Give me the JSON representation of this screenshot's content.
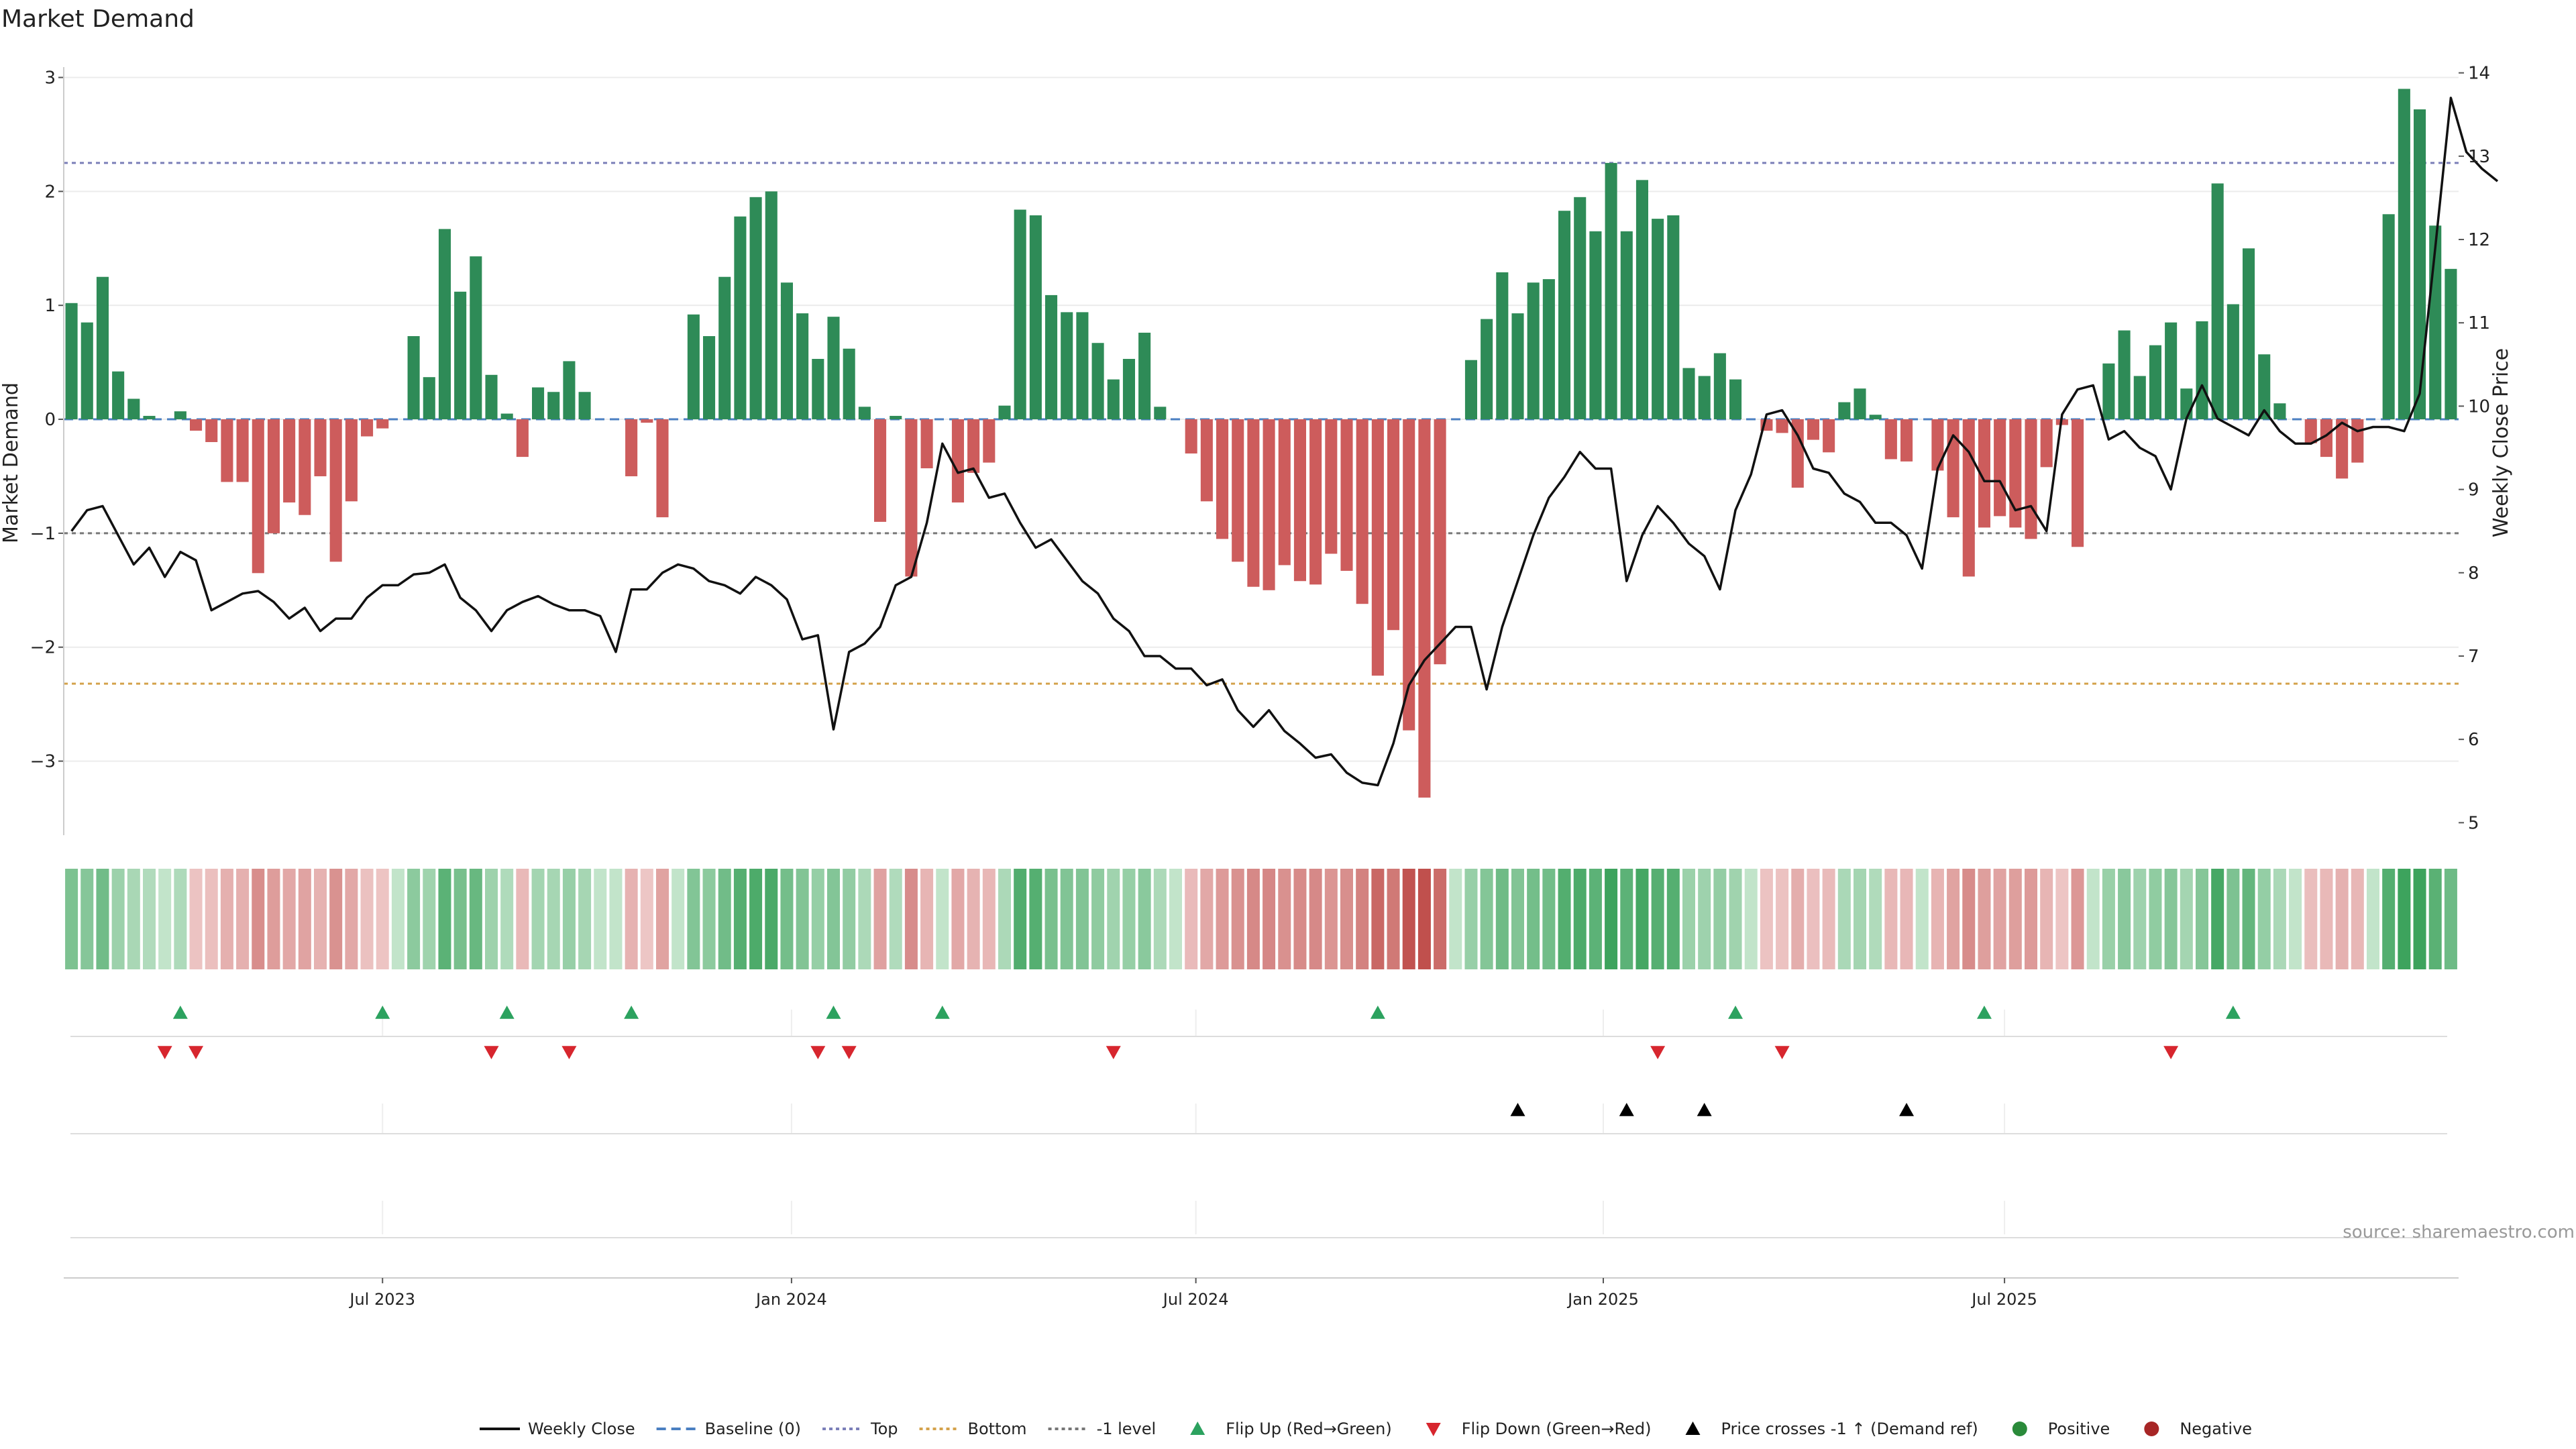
{
  "chart_data": {
    "type": "bar",
    "title": "Market Demand",
    "ylabel_left": "Market Demand",
    "ylabel_right": "Weekly Close Price",
    "source": "source: sharemaestro.com",
    "ylim_left": [
      -3.65,
      3.15
    ],
    "ylim_right": [
      4.85,
      14.15
    ],
    "yticks_left": [
      3,
      2,
      1,
      0,
      -1,
      -2,
      -3
    ],
    "yticks_left_labels": [
      "3",
      "2",
      "1",
      "0",
      "−1",
      "−2",
      "−3"
    ],
    "yticks_right": [
      14,
      13,
      12,
      11,
      10,
      9,
      8,
      7,
      6,
      5
    ],
    "yticks_right_labels": [
      "14",
      "13",
      "12",
      "11",
      "10",
      "9",
      "8",
      "7",
      "6",
      "5"
    ],
    "x_ticks": [
      {
        "label": "Jul 2023",
        "index": 20
      },
      {
        "label": "Jan 2024",
        "index": 46.3
      },
      {
        "label": "Jul 2024",
        "index": 72.3
      },
      {
        "label": "Jan 2025",
        "index": 98.5
      },
      {
        "label": "Jul 2025",
        "index": 124.3
      }
    ],
    "levels": {
      "top": 2.25,
      "bottom": -2.32,
      "minus_one": -1,
      "baseline": 0
    },
    "demand": [
      1.02,
      0.85,
      1.25,
      0.42,
      0.18,
      0.03,
      0,
      0.07,
      -0.1,
      -0.2,
      -0.55,
      -0.55,
      -1.35,
      -1.0,
      -0.73,
      -0.84,
      -0.5,
      -1.25,
      -0.72,
      -0.15,
      -0.08,
      0,
      0.73,
      0.37,
      1.67,
      1.12,
      1.43,
      0.39,
      0.05,
      -0.33,
      0.28,
      0.24,
      0.51,
      0.24,
      0,
      0,
      -0.5,
      -0.03,
      -0.86,
      0,
      0.92,
      0.73,
      1.25,
      1.78,
      1.95,
      2.0,
      1.2,
      0.93,
      0.53,
      0.9,
      0.62,
      0.11,
      -0.9,
      0.03,
      -1.38,
      -0.43,
      0,
      -0.73,
      -0.47,
      -0.38,
      0.12,
      1.84,
      1.79,
      1.09,
      0.94,
      0.94,
      0.67,
      0.35,
      0.53,
      0.76,
      0.11,
      0,
      -0.3,
      -0.72,
      -1.05,
      -1.25,
      -1.47,
      -1.5,
      -1.28,
      -1.42,
      -1.45,
      -1.18,
      -1.33,
      -1.62,
      -2.25,
      -1.85,
      -2.73,
      -3.32,
      -2.15,
      0,
      0.52,
      0.88,
      1.29,
      0.93,
      1.2,
      1.23,
      1.83,
      1.95,
      1.65,
      2.25,
      1.65,
      2.1,
      1.76,
      1.79,
      0.45,
      0.38,
      0.58,
      0.35,
      0,
      -0.1,
      -0.12,
      -0.6,
      -0.18,
      -0.29,
      0.15,
      0.27,
      0.04,
      -0.35,
      -0.37,
      0,
      -0.45,
      -0.86,
      -1.38,
      -0.95,
      -0.85,
      -0.95,
      -1.05,
      -0.42,
      -0.05,
      -1.12,
      0,
      0.49,
      0.78,
      0.38,
      0.65,
      0.85,
      0.27,
      0.86,
      2.07,
      1.01,
      1.5,
      0.57,
      0.14,
      0,
      -0.21,
      -0.33,
      -0.52,
      -0.38,
      0,
      1.8,
      2.9,
      2.72,
      1.7,
      1.32
    ],
    "weekly_close": [
      8.5,
      8.75,
      8.8,
      8.45,
      8.1,
      8.3,
      7.95,
      8.25,
      8.15,
      7.55,
      7.65,
      7.75,
      7.78,
      7.65,
      7.45,
      7.58,
      7.3,
      7.45,
      7.45,
      7.7,
      7.85,
      7.85,
      7.98,
      8.0,
      8.1,
      7.7,
      7.55,
      7.3,
      7.55,
      7.65,
      7.72,
      7.62,
      7.55,
      7.55,
      7.48,
      7.05,
      7.8,
      7.8,
      8.0,
      8.1,
      8.05,
      7.9,
      7.85,
      7.75,
      7.95,
      7.85,
      7.68,
      7.2,
      7.25,
      6.12,
      7.05,
      7.15,
      7.35,
      7.85,
      7.95,
      8.6,
      9.55,
      9.2,
      9.25,
      8.9,
      8.95,
      8.6,
      8.3,
      8.4,
      8.15,
      7.9,
      7.75,
      7.45,
      7.3,
      7.0,
      7.0,
      6.85,
      6.85,
      6.65,
      6.72,
      6.35,
      6.15,
      6.35,
      6.1,
      5.95,
      5.78,
      5.82,
      5.6,
      5.48,
      5.45,
      5.95,
      6.65,
      6.95,
      7.15,
      7.35,
      7.35,
      6.6,
      7.35,
      7.9,
      8.45,
      8.9,
      9.15,
      9.45,
      9.25,
      9.25,
      7.9,
      8.45,
      8.8,
      8.6,
      8.35,
      8.2,
      7.8,
      8.75,
      9.18,
      9.9,
      9.95,
      9.65,
      9.25,
      9.2,
      8.95,
      8.85,
      8.6,
      8.6,
      8.45,
      8.05,
      9.25,
      9.65,
      9.45,
      9.1,
      9.1,
      8.75,
      8.8,
      8.5,
      9.9,
      10.2,
      10.25,
      9.6,
      9.7,
      9.5,
      9.4,
      9.0,
      9.85,
      10.25,
      9.85,
      9.75,
      9.65,
      9.95,
      9.7,
      9.55,
      9.55,
      9.65,
      9.8,
      9.7,
      9.75,
      9.75,
      9.7,
      10.15,
      11.9,
      13.7,
      13.05,
      12.85,
      12.7
    ],
    "flip_up_indices": [
      7,
      20,
      28,
      36,
      49,
      56,
      84,
      107,
      123,
      139
    ],
    "flip_down_indices": [
      6,
      8,
      27,
      32,
      48,
      50,
      67,
      102,
      110,
      135
    ],
    "price_cross_indices": [
      93,
      100,
      105,
      118
    ],
    "legend": [
      {
        "label": "Weekly Close",
        "symbol": "line",
        "color": "#111111"
      },
      {
        "label": "Baseline (0)",
        "symbol": "dash",
        "color": "#4a7fc1"
      },
      {
        "label": "Top",
        "symbol": "dot",
        "color": "#7b7fb8"
      },
      {
        "label": "Bottom",
        "symbol": "dot",
        "color": "#d4a24c"
      },
      {
        "label": "-1 level",
        "symbol": "dot",
        "color": "#777777"
      },
      {
        "label": "Flip Up (Red→Green)",
        "symbol": "triangle-up",
        "color": "#2ca25f"
      },
      {
        "label": "Flip Down (Green→Red)",
        "symbol": "triangle-down",
        "color": "#d7262e"
      },
      {
        "label": "Price crosses -1 ↑ (Demand ref)",
        "symbol": "triangle-up",
        "color": "#000000"
      },
      {
        "label": "Positive",
        "symbol": "circle",
        "color": "#2a8a3a"
      },
      {
        "label": "Negative",
        "symbol": "circle",
        "color": "#a72626"
      }
    ],
    "colors": {
      "positive_bar": "#2e8b57",
      "negative_bar": "#cd5c5c",
      "weekly_close": "#111111",
      "heat_positive": "#3da35d",
      "heat_negative": "#c0504d"
    }
  }
}
